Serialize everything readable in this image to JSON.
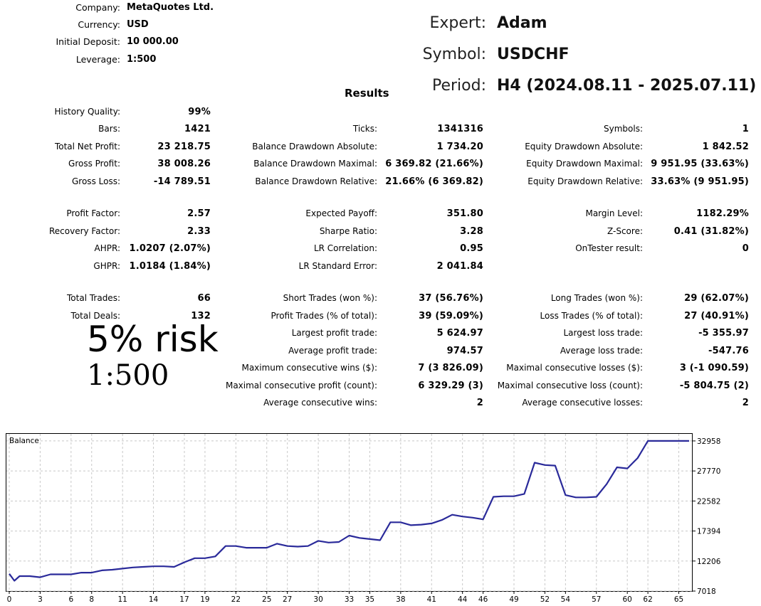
{
  "header": {
    "rows": [
      {
        "label": "Company:",
        "value": "MetaQuotes Ltd."
      },
      {
        "label": "Currency:",
        "value": "USD"
      },
      {
        "label": "Initial Deposit:",
        "value": "10 000.00"
      },
      {
        "label": "Leverage:",
        "value": "1:500"
      }
    ]
  },
  "info": {
    "expert_label": "Expert:",
    "expert_value": "Adam",
    "symbol_label": "Symbol:",
    "symbol_value": "USDCHF",
    "period_label": "Period:",
    "period_value": "H4 (2024.08.11 - 2025.07.11)"
  },
  "results_title": "Results",
  "col1": [
    {
      "label": "History Quality:",
      "value": "99%"
    },
    {
      "label": "Bars:",
      "value": "1421"
    },
    {
      "label": "Total Net Profit:",
      "value": "23 218.75"
    },
    {
      "label": "Gross Profit:",
      "value": "38 008.26"
    },
    {
      "label": "Gross Loss:",
      "value": "-14 789.51"
    },
    {
      "label": "Profit Factor:",
      "value": "2.57"
    },
    {
      "label": "Recovery Factor:",
      "value": "2.33"
    },
    {
      "label": "AHPR:",
      "value": "1.0207 (2.07%)"
    },
    {
      "label": "GHPR:",
      "value": "1.0184 (1.84%)"
    },
    {
      "label": "Total Trades:",
      "value": "66"
    },
    {
      "label": "Total Deals:",
      "value": "132"
    }
  ],
  "col2": [
    {
      "label": "Ticks:",
      "value": "1341316"
    },
    {
      "label": "Balance Drawdown Absolute:",
      "value": "1 734.20"
    },
    {
      "label": "Balance Drawdown Maximal:",
      "value": "6 369.82 (21.66%)"
    },
    {
      "label": "Balance Drawdown Relative:",
      "value": "21.66% (6 369.82)"
    },
    {
      "label": "Expected Payoff:",
      "value": "351.80"
    },
    {
      "label": "Sharpe Ratio:",
      "value": "3.28"
    },
    {
      "label": "LR Correlation:",
      "value": "0.95"
    },
    {
      "label": "LR Standard Error:",
      "value": "2 041.84"
    },
    {
      "label": "Short Trades (won %):",
      "value": "37 (56.76%)"
    },
    {
      "label": "Profit Trades (% of total):",
      "value": "39 (59.09%)"
    },
    {
      "label": "Largest profit trade:",
      "value": "5 624.97"
    },
    {
      "label": "Average profit trade:",
      "value": "974.57"
    },
    {
      "label": "Maximum consecutive wins ($):",
      "value": "7 (3 826.09)"
    },
    {
      "label": "Maximal consecutive profit (count):",
      "value": "6 329.29 (3)"
    },
    {
      "label": "Average consecutive wins:",
      "value": "2"
    }
  ],
  "col3": [
    {
      "label": "Symbols:",
      "value": "1"
    },
    {
      "label": "Equity Drawdown Absolute:",
      "value": "1 842.52"
    },
    {
      "label": "Equity Drawdown Maximal:",
      "value": "9 951.95 (33.63%)"
    },
    {
      "label": "Equity Drawdown Relative:",
      "value": "33.63% (9 951.95)"
    },
    {
      "label": "Margin Level:",
      "value": "1182.29%"
    },
    {
      "label": "Z-Score:",
      "value": "0.41 (31.82%)"
    },
    {
      "label": "OnTester result:",
      "value": "0"
    },
    {
      "label": "Long Trades (won %):",
      "value": "29 (62.07%)"
    },
    {
      "label": "Loss Trades (% of total):",
      "value": "27 (40.91%)"
    },
    {
      "label": "Largest loss trade:",
      "value": "-5 355.97"
    },
    {
      "label": "Average loss trade:",
      "value": "-547.76"
    },
    {
      "label": "Maximal consecutive losses ($):",
      "value": "3 (-1 090.59)"
    },
    {
      "label": "Maximal consecutive loss (count):",
      "value": "-5 804.75 (2)"
    },
    {
      "label": "Average consecutive losses:",
      "value": "2"
    }
  ],
  "annotation": {
    "risk": "5% risk",
    "leverage": "1:500"
  },
  "colors": {
    "line": "#2a2a9a",
    "grid": "#c8c8c8",
    "frame": "#000000"
  },
  "chart_data": {
    "type": "line",
    "title": "Balance",
    "xlabel": "",
    "ylabel": "",
    "x_ticks": [
      "0",
      "3",
      "6",
      "8",
      "11",
      "14",
      "17",
      "19",
      "22",
      "25",
      "27",
      "30",
      "33",
      "35",
      "38",
      "41",
      "44",
      "46",
      "49",
      "52",
      "54",
      "57",
      "60",
      "62",
      "65"
    ],
    "y_ticks": [
      "7018",
      "12206",
      "17394",
      "22582",
      "27770",
      "32958"
    ],
    "ylim": [
      7018,
      34300
    ],
    "xlim": [
      0,
      66
    ],
    "grid": true,
    "series": [
      {
        "x": [
          0,
          0.5,
          1,
          2,
          3,
          4,
          5,
          6,
          7,
          8,
          9,
          10,
          11,
          12,
          13,
          14,
          15,
          16,
          17,
          18,
          19,
          20,
          21,
          22,
          23,
          24,
          25,
          26,
          27,
          28,
          29,
          30,
          31,
          32,
          33,
          34,
          35,
          36,
          37,
          38,
          39,
          40,
          41,
          42,
          43,
          44,
          45,
          46,
          47,
          48,
          49,
          50,
          51,
          52,
          53,
          54,
          55,
          56,
          57,
          58,
          59,
          60,
          61,
          62,
          63,
          64,
          65,
          66
        ],
        "y": [
          10000,
          8800,
          9600,
          9600,
          9400,
          9900,
          9900,
          9900,
          10200,
          10200,
          10600,
          10700,
          10900,
          11100,
          11200,
          11300,
          11300,
          11200,
          12000,
          12700,
          12700,
          13000,
          14800,
          14800,
          14500,
          14500,
          14500,
          15200,
          14800,
          14700,
          14800,
          15700,
          15400,
          15500,
          16600,
          16200,
          16000,
          15800,
          18900,
          18900,
          18400,
          18500,
          18700,
          19300,
          20200,
          19900,
          19700,
          19400,
          23300,
          23400,
          23400,
          23800,
          29200,
          28800,
          28700,
          23600,
          23200,
          23200,
          23300,
          25500,
          28400,
          28200,
          30000,
          32958,
          32958,
          32958,
          32958,
          32958
        ]
      }
    ]
  }
}
